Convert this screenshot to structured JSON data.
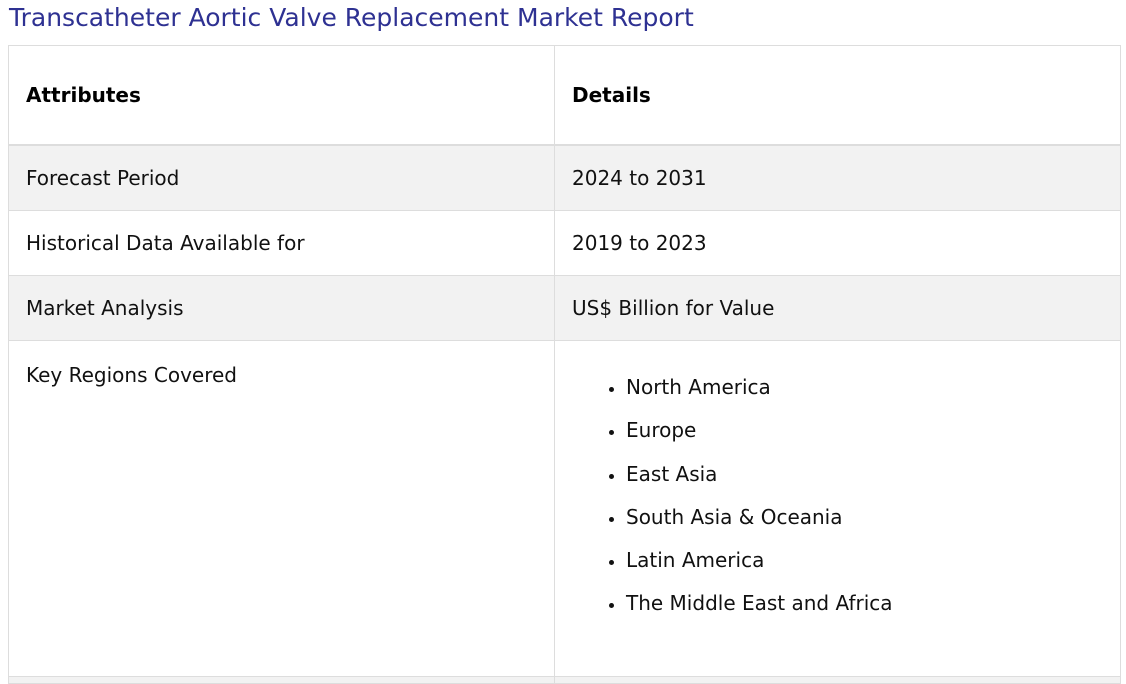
{
  "page": {
    "title": "Transcatheter Aortic Valve Replacement Market Report"
  },
  "table": {
    "headers": {
      "attributes": "Attributes",
      "details": "Details"
    },
    "rows": [
      {
        "attribute": "Forecast Period",
        "detail": "2024 to 2031"
      },
      {
        "attribute": "Historical Data Available for",
        "detail": "2019 to 2023"
      },
      {
        "attribute": "Market Analysis",
        "detail": "US$ Billion for Value"
      }
    ],
    "regions": {
      "attribute": "Key Regions Covered",
      "items": [
        "North America",
        "Europe",
        "East Asia",
        "South Asia & Oceania",
        "Latin America",
        "The Middle East and Africa"
      ]
    }
  },
  "colors": {
    "title": "#2e3192",
    "shaded_row": "#f2f2f2",
    "border": "#dddddd"
  }
}
